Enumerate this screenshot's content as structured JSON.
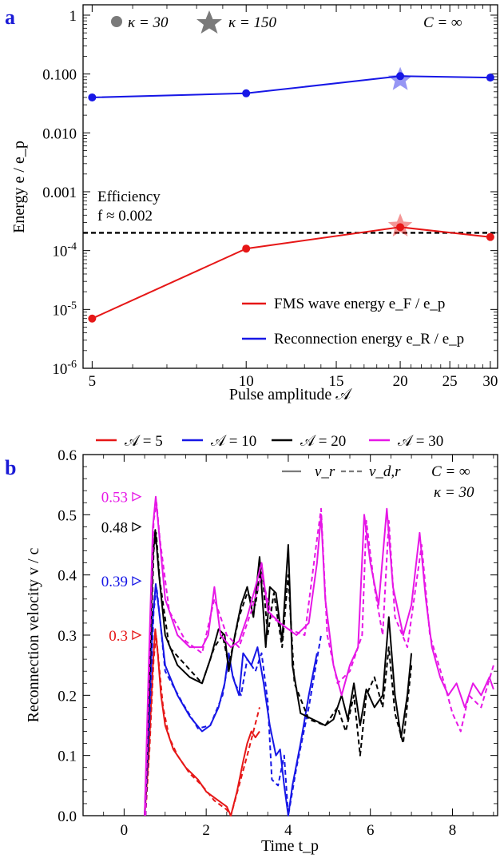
{
  "chart_data": [
    {
      "panel": "a",
      "type": "line",
      "xlabel": "Pulse amplitude 𝒜",
      "ylabel": "Energy e / e_p",
      "x_scale": "log",
      "y_scale": "log",
      "xlim": [
        4.8,
        31
      ],
      "ylim": [
        1e-06,
        1.5
      ],
      "x_ticks": [
        "5",
        "10",
        "15",
        "20",
        "25",
        "30"
      ],
      "y_ticks": [
        "10^-6",
        "10^-5",
        "10^-4",
        "0.001",
        "0.010",
        "0.100",
        "1"
      ],
      "marker_legend": [
        "κ = 30",
        "κ = 150"
      ],
      "C_label": "C = ∞",
      "annotation": [
        "Efficiency",
        "f ≈ 0.002"
      ],
      "efficiency_line": 0.0002,
      "series": [
        {
          "name": "Reconnection energy e_R / e_p",
          "color": "#1717e6",
          "x": [
            5,
            10,
            20,
            30
          ],
          "y": [
            0.04,
            0.047,
            0.092,
            0.087
          ],
          "star": {
            "x": 20,
            "y": 0.08
          }
        },
        {
          "name": "FMS wave energy e_F / e_p",
          "color": "#e61717",
          "x": [
            5,
            10,
            20,
            30
          ],
          "y": [
            7e-06,
            0.000108,
            0.00025,
            0.00017
          ],
          "star": {
            "x": 20,
            "y": 0.00026
          }
        }
      ]
    },
    {
      "panel": "b",
      "type": "line",
      "xlabel": "Time t_p",
      "ylabel": "Reconnection velocity v / c",
      "xlim": [
        -1,
        9.1
      ],
      "ylim": [
        0,
        0.6
      ],
      "x_ticks": [
        "0",
        "2",
        "4",
        "6",
        "8"
      ],
      "y_ticks": [
        "0.0",
        "0.1",
        "0.2",
        "0.3",
        "0.4",
        "0.5",
        "0.6"
      ],
      "style_legend": [
        "v_r",
        "v_d,r"
      ],
      "C_label": "C = ∞",
      "kappa_label": "κ = 30",
      "series": [
        {
          "name": "𝒜 = 5",
          "color": "#e61717",
          "peak_label": "0.3",
          "v_r": [
            [
              0.5,
              0
            ],
            [
              0.6,
              0.1
            ],
            [
              0.7,
              0.25
            ],
            [
              0.76,
              0.31
            ],
            [
              0.82,
              0.27
            ],
            [
              0.9,
              0.2
            ],
            [
              1.0,
              0.15
            ],
            [
              1.2,
              0.11
            ],
            [
              1.5,
              0.08
            ],
            [
              1.8,
              0.06
            ],
            [
              2.0,
              0.04
            ],
            [
              2.2,
              0.03
            ],
            [
              2.4,
              0.02
            ],
            [
              2.5,
              0.015
            ],
            [
              2.6,
              0.0
            ],
            [
              2.75,
              0.04
            ],
            [
              2.9,
              0.09
            ],
            [
              3.0,
              0.12
            ],
            [
              3.1,
              0.14
            ],
            [
              3.2,
              0.13
            ],
            [
              3.3,
              0.14
            ]
          ],
          "v_dr": [
            [
              0.52,
              0
            ],
            [
              0.62,
              0.11
            ],
            [
              0.72,
              0.26
            ],
            [
              0.78,
              0.3
            ],
            [
              0.85,
              0.25
            ],
            [
              0.95,
              0.18
            ],
            [
              1.1,
              0.13
            ],
            [
              1.3,
              0.1
            ],
            [
              1.6,
              0.07
            ],
            [
              1.9,
              0.05
            ],
            [
              2.2,
              0.025
            ],
            [
              2.5,
              0.01
            ],
            [
              2.6,
              0.0
            ],
            [
              2.8,
              0.05
            ],
            [
              3.0,
              0.1
            ],
            [
              3.15,
              0.14
            ],
            [
              3.3,
              0.18
            ]
          ]
        },
        {
          "name": "𝒜 = 10",
          "color": "#1717e6",
          "peak_label": "0.39",
          "v_r": [
            [
              0.5,
              0
            ],
            [
              0.6,
              0.15
            ],
            [
              0.7,
              0.33
            ],
            [
              0.77,
              0.385
            ],
            [
              0.85,
              0.34
            ],
            [
              1.0,
              0.25
            ],
            [
              1.3,
              0.2
            ],
            [
              1.6,
              0.165
            ],
            [
              1.9,
              0.14
            ],
            [
              2.1,
              0.15
            ],
            [
              2.3,
              0.18
            ],
            [
              2.45,
              0.22
            ],
            [
              2.55,
              0.27
            ],
            [
              2.65,
              0.23
            ],
            [
              2.8,
              0.2
            ],
            [
              2.9,
              0.27
            ],
            [
              3.1,
              0.25
            ],
            [
              3.25,
              0.28
            ],
            [
              3.4,
              0.22
            ],
            [
              3.55,
              0.15
            ],
            [
              3.7,
              0.1
            ],
            [
              3.8,
              0.11
            ],
            [
              3.9,
              0.05
            ],
            [
              4.0,
              0.0
            ],
            [
              4.1,
              0.05
            ],
            [
              4.3,
              0.12
            ],
            [
              4.5,
              0.2
            ],
            [
              4.7,
              0.27
            ]
          ],
          "v_dr": [
            [
              0.52,
              0
            ],
            [
              0.62,
              0.16
            ],
            [
              0.72,
              0.34
            ],
            [
              0.79,
              0.38
            ],
            [
              0.87,
              0.33
            ],
            [
              1.0,
              0.24
            ],
            [
              1.4,
              0.19
            ],
            [
              1.8,
              0.145
            ],
            [
              2.1,
              0.15
            ],
            [
              2.4,
              0.2
            ],
            [
              2.55,
              0.26
            ],
            [
              2.7,
              0.22
            ],
            [
              2.85,
              0.2
            ],
            [
              3.0,
              0.26
            ],
            [
              3.2,
              0.24
            ],
            [
              3.35,
              0.27
            ],
            [
              3.5,
              0.19
            ],
            [
              3.6,
              0.06
            ],
            [
              3.75,
              0.05
            ],
            [
              3.9,
              0.1
            ],
            [
              4.0,
              0.0
            ],
            [
              4.2,
              0.08
            ],
            [
              4.5,
              0.18
            ],
            [
              4.8,
              0.3
            ]
          ]
        },
        {
          "name": "𝒜 = 20",
          "color": "#000000",
          "peak_label": "0.48",
          "v_r": [
            [
              0.5,
              0
            ],
            [
              0.6,
              0.2
            ],
            [
              0.7,
              0.43
            ],
            [
              0.76,
              0.475
            ],
            [
              0.85,
              0.4
            ],
            [
              1.0,
              0.3
            ],
            [
              1.3,
              0.25
            ],
            [
              1.6,
              0.23
            ],
            [
              1.9,
              0.22
            ],
            [
              2.1,
              0.26
            ],
            [
              2.3,
              0.31
            ],
            [
              2.45,
              0.3
            ],
            [
              2.55,
              0.24
            ],
            [
              2.7,
              0.3
            ],
            [
              2.85,
              0.35
            ],
            [
              3.0,
              0.38
            ],
            [
              3.15,
              0.33
            ],
            [
              3.3,
              0.43
            ],
            [
              3.45,
              0.28
            ],
            [
              3.55,
              0.38
            ],
            [
              3.7,
              0.37
            ],
            [
              3.85,
              0.29
            ],
            [
              4.0,
              0.45
            ],
            [
              4.1,
              0.25
            ],
            [
              4.3,
              0.17
            ],
            [
              4.6,
              0.16
            ],
            [
              4.9,
              0.15
            ],
            [
              5.1,
              0.16
            ],
            [
              5.3,
              0.2
            ],
            [
              5.45,
              0.16
            ],
            [
              5.6,
              0.22
            ],
            [
              5.75,
              0.15
            ],
            [
              5.9,
              0.21
            ],
            [
              6.1,
              0.18
            ],
            [
              6.3,
              0.2
            ],
            [
              6.45,
              0.33
            ],
            [
              6.6,
              0.2
            ],
            [
              6.75,
              0.13
            ],
            [
              6.9,
              0.2
            ],
            [
              7.0,
              0.27
            ]
          ],
          "v_dr": [
            [
              0.52,
              0
            ],
            [
              0.62,
              0.21
            ],
            [
              0.72,
              0.44
            ],
            [
              0.78,
              0.47
            ],
            [
              0.87,
              0.39
            ],
            [
              1.1,
              0.28
            ],
            [
              1.5,
              0.25
            ],
            [
              1.9,
              0.22
            ],
            [
              2.2,
              0.28
            ],
            [
              2.4,
              0.3
            ],
            [
              2.55,
              0.25
            ],
            [
              2.8,
              0.33
            ],
            [
              3.0,
              0.37
            ],
            [
              3.2,
              0.35
            ],
            [
              3.35,
              0.42
            ],
            [
              3.5,
              0.3
            ],
            [
              3.65,
              0.37
            ],
            [
              3.85,
              0.28
            ],
            [
              4.0,
              0.4
            ],
            [
              4.15,
              0.22
            ],
            [
              4.5,
              0.16
            ],
            [
              4.9,
              0.15
            ],
            [
              5.2,
              0.18
            ],
            [
              5.4,
              0.14
            ],
            [
              5.6,
              0.2
            ],
            [
              5.75,
              0.1
            ],
            [
              5.9,
              0.2
            ],
            [
              6.1,
              0.23
            ],
            [
              6.3,
              0.18
            ],
            [
              6.45,
              0.28
            ],
            [
              6.6,
              0.17
            ],
            [
              6.8,
              0.12
            ],
            [
              7.0,
              0.25
            ]
          ]
        },
        {
          "name": "𝒜 = 30",
          "color": "#e617e6",
          "peak_label": "0.53",
          "v_r": [
            [
              0.5,
              0
            ],
            [
              0.6,
              0.25
            ],
            [
              0.7,
              0.48
            ],
            [
              0.77,
              0.53
            ],
            [
              0.85,
              0.47
            ],
            [
              1.0,
              0.36
            ],
            [
              1.3,
              0.3
            ],
            [
              1.6,
              0.28
            ],
            [
              1.9,
              0.28
            ],
            [
              2.05,
              0.3
            ],
            [
              2.2,
              0.38
            ],
            [
              2.35,
              0.3
            ],
            [
              2.6,
              0.28
            ],
            [
              2.8,
              0.29
            ],
            [
              3.0,
              0.33
            ],
            [
              3.2,
              0.38
            ],
            [
              3.35,
              0.42
            ],
            [
              3.5,
              0.34
            ],
            [
              3.8,
              0.32
            ],
            [
              4.2,
              0.3
            ],
            [
              4.5,
              0.32
            ],
            [
              4.7,
              0.42
            ],
            [
              4.8,
              0.5
            ],
            [
              4.9,
              0.36
            ],
            [
              5.1,
              0.25
            ],
            [
              5.3,
              0.2
            ],
            [
              5.5,
              0.25
            ],
            [
              5.7,
              0.28
            ],
            [
              5.85,
              0.5
            ],
            [
              6.0,
              0.42
            ],
            [
              6.2,
              0.35
            ],
            [
              6.4,
              0.51
            ],
            [
              6.55,
              0.38
            ],
            [
              6.8,
              0.3
            ],
            [
              7.0,
              0.35
            ],
            [
              7.2,
              0.47
            ],
            [
              7.35,
              0.36
            ],
            [
              7.5,
              0.28
            ],
            [
              7.7,
              0.23
            ],
            [
              7.9,
              0.2
            ],
            [
              8.1,
              0.22
            ],
            [
              8.3,
              0.18
            ],
            [
              8.5,
              0.22
            ],
            [
              8.7,
              0.2
            ],
            [
              8.9,
              0.23
            ],
            [
              9.0,
              0.21
            ]
          ],
          "v_dr": [
            [
              0.52,
              0
            ],
            [
              0.62,
              0.26
            ],
            [
              0.72,
              0.49
            ],
            [
              0.79,
              0.52
            ],
            [
              0.87,
              0.46
            ],
            [
              1.1,
              0.34
            ],
            [
              1.5,
              0.29
            ],
            [
              1.9,
              0.27
            ],
            [
              2.2,
              0.36
            ],
            [
              2.5,
              0.3
            ],
            [
              2.8,
              0.28
            ],
            [
              3.1,
              0.34
            ],
            [
              3.35,
              0.4
            ],
            [
              3.6,
              0.33
            ],
            [
              4.0,
              0.31
            ],
            [
              4.4,
              0.3
            ],
            [
              4.7,
              0.46
            ],
            [
              4.8,
              0.51
            ],
            [
              4.95,
              0.3
            ],
            [
              5.2,
              0.22
            ],
            [
              5.5,
              0.24
            ],
            [
              5.8,
              0.3
            ],
            [
              5.9,
              0.49
            ],
            [
              6.1,
              0.38
            ],
            [
              6.3,
              0.3
            ],
            [
              6.45,
              0.49
            ],
            [
              6.6,
              0.33
            ],
            [
              6.9,
              0.28
            ],
            [
              7.25,
              0.45
            ],
            [
              7.45,
              0.3
            ],
            [
              7.8,
              0.22
            ],
            [
              8.0,
              0.17
            ],
            [
              8.2,
              0.14
            ],
            [
              8.4,
              0.2
            ],
            [
              8.7,
              0.18
            ],
            [
              9.0,
              0.25
            ]
          ]
        }
      ]
    }
  ]
}
